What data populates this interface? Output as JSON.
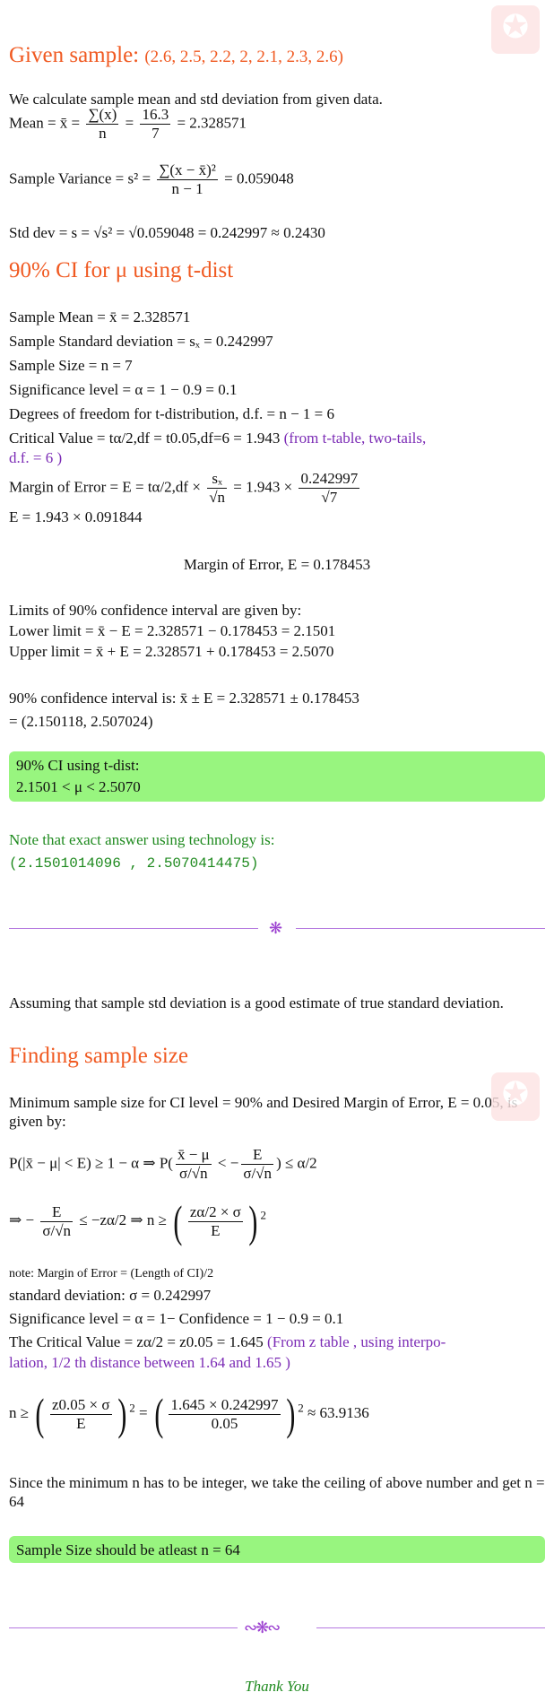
{
  "section1": {
    "title": "Given sample:",
    "sample": "(2.6, 2.5, 2.2, 2, 2.1, 2.3, 2.6)",
    "intro": "We calculate sample mean and std deviation from given data.",
    "mean_label": "Mean = x̄ =",
    "mean_num": "∑(x)",
    "mean_den": "n",
    "mean_eq": "=",
    "mean_num2": "16.3",
    "mean_den2": "7",
    "mean_val": "= 2.328571",
    "var_label": "Sample Variance = s² =",
    "var_num": "∑(x − x̄)²",
    "var_den": "n − 1",
    "var_val": "= 0.059048",
    "sd_line": "Std dev = s = √s² = √0.059048 = 0.242997 ≈ 0.2430"
  },
  "section2": {
    "title": "90% CI for μ using t-dist",
    "l1": "Sample Mean = x̄ = 2.328571",
    "l2": "Sample Standard deviation = sₓ = 0.242997",
    "l3": "Sample Size = n = 7",
    "l4": "Significance level = α = 1 − 0.9 = 0.1",
    "l5": "Degrees of freedom for t-distribution, d.f. = n − 1 = 6",
    "l6": "Critical Value = tα/2,df = t0.05,df=6 = 1.943",
    "l6_note": "(from t-table, two-tails,",
    "l6_note2": "d.f. = 6 )",
    "moe_label": "Margin of Error = E = tα/2,df ×",
    "moe_num": "sₓ",
    "moe_den": "√n",
    "moe_mid": "= 1.943 ×",
    "moe_num2": "0.242997",
    "moe_den2": "√7",
    "moe_l2": "E = 1.943 × 0.091844",
    "moe_final": "Margin of Error, E = 0.178453",
    "lim_intro": "Limits of 90% confidence interval are given by:",
    "lower": "Lower limit = x̄ − E = 2.328571 − 0.178453 = 2.1501",
    "upper": "Upper limit = x̄ + E = 2.328571 + 0.178453 = 2.5070",
    "ci_line1": "90% confidence interval is: x̄ ± E = 2.328571 ± 0.178453",
    "ci_line2": "= (2.150118, 2.507024)",
    "box_l1": "90% CI using t-dist:",
    "box_l2": "2.1501 < μ < 2.5070",
    "note": "Note that exact answer using technology is:",
    "note_val": "(2.1501014096 , 2.5070414475)"
  },
  "section3": {
    "assume": "Assuming that sample std deviation is a good estimate of true standard deviation.",
    "title": "Finding sample size",
    "intro": "Minimum sample size for CI level = 90% and Desired Margin of Error, E = 0.05, is given by:",
    "eq1_left": "P(|x̄ − μ| < E) ≥ 1 − α ⇒ P(",
    "eq1_num": "x̄ − μ",
    "eq1_den": "σ/√n",
    "eq1_mid": "< −",
    "eq1_num2": "E",
    "eq1_den2": "σ/√n",
    "eq1_right": ") ≤ α/2",
    "eq2_left": "⇒ −",
    "eq2_num": "E",
    "eq2_den": "σ/√n",
    "eq2_mid": "≤ −zα/2 ⇒ n ≥",
    "eq2_num2": "zα/2 × σ",
    "eq2_den2": "E",
    "note": "note: Margin of Error = (Length of CI)/2",
    "sd": "standard deviation: σ = 0.242997",
    "sig": "Significance level = α = 1− Confidence = 1 − 0.9 = 0.1",
    "cv": "The Critical Value = zα/2 = z0.05 = 1.645",
    "cv_note": "(From z table , using interpo-",
    "cv_note2": "lation, 1/2 th distance between 1.64 and 1.65 )",
    "n_left": "n ≥",
    "n_num": "z0.05 × σ",
    "n_den": "E",
    "n_eq": "=",
    "n_num2": "1.645 × 0.242997",
    "n_den2": "0.05",
    "n_val": "≈ 63.9136",
    "ceil": "Since the minimum n has to be integer, we take the ceiling of above number and get n = 64",
    "box": "Sample Size should be atleast n = 64"
  },
  "footer": {
    "thanks": "Thank You"
  }
}
